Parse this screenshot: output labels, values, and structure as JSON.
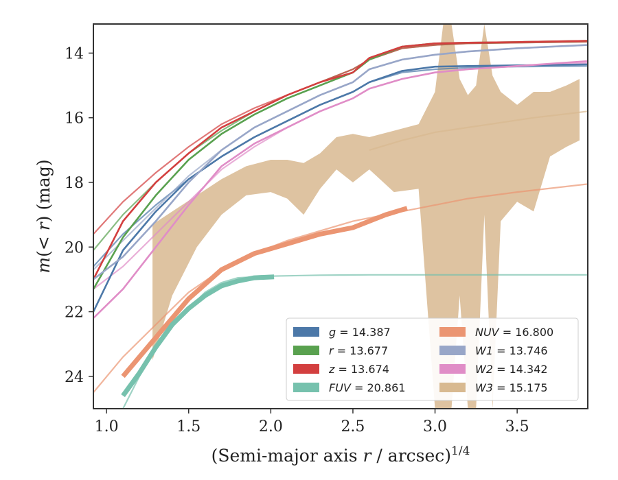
{
  "chart_data": {
    "type": "line",
    "xlabel": "(Semi-major axis r / arcsec)^{1/4}",
    "ylabel": "m(< r) (mag)",
    "xlim": [
      0.92,
      3.93
    ],
    "ylim": [
      25.0,
      13.1
    ],
    "y_inverted": true,
    "xticks": [
      1.0,
      1.5,
      2.0,
      2.5,
      3.0,
      3.5
    ],
    "xtick_labels": [
      "1.0",
      "1.5",
      "2.0",
      "2.5",
      "3.0",
      "3.5"
    ],
    "yticks": [
      14,
      16,
      18,
      20,
      22,
      24
    ],
    "ytick_labels": [
      "14",
      "16",
      "18",
      "20",
      "22",
      "24"
    ],
    "grid": false,
    "legend_position": "bottom-right",
    "legend_columns": 2,
    "legend": [
      {
        "band": "g",
        "value": "14.387",
        "color": "#4c78a8"
      },
      {
        "band": "r",
        "value": "13.677",
        "color": "#59a14f"
      },
      {
        "band": "z",
        "value": "13.674",
        "color": "#d33f3f"
      },
      {
        "band": "FUV",
        "value": "20.861",
        "color": "#76c1ad"
      },
      {
        "band": "NUV",
        "value": "16.800",
        "color": "#eb9572"
      },
      {
        "band": "W1",
        "value": "13.746",
        "color": "#98a6c8"
      },
      {
        "band": "W2",
        "value": "14.342",
        "color": "#e08dc7"
      },
      {
        "band": "W3",
        "value": "15.175",
        "color": "#d8b990"
      }
    ],
    "series": [
      {
        "name": "g",
        "color": "#4c78a8",
        "x": [
          0.92,
          1.1,
          1.3,
          1.5,
          1.7,
          1.9,
          2.1,
          2.3,
          2.5,
          2.6,
          2.8,
          3.0,
          3.2,
          3.5,
          3.93
        ],
        "y": [
          22.0,
          20.1,
          18.9,
          17.9,
          17.2,
          16.6,
          16.1,
          15.6,
          15.2,
          14.9,
          14.55,
          14.42,
          14.4,
          14.38,
          14.35
        ],
        "model_y": [
          20.6,
          19.6,
          18.7,
          17.9,
          17.2,
          16.6,
          16.1,
          15.6,
          15.2,
          14.9,
          14.6,
          14.5,
          14.45,
          14.42,
          14.4
        ]
      },
      {
        "name": "r",
        "color": "#59a14f",
        "x": [
          0.92,
          1.1,
          1.3,
          1.5,
          1.7,
          1.9,
          2.1,
          2.3,
          2.5,
          2.6,
          2.8,
          3.0,
          3.2,
          3.5,
          3.93
        ],
        "y": [
          21.3,
          19.7,
          18.4,
          17.3,
          16.5,
          15.9,
          15.4,
          15.0,
          14.6,
          14.2,
          13.8,
          13.7,
          13.68,
          13.66,
          13.62
        ],
        "model_y": [
          20.1,
          19.0,
          18.0,
          17.1,
          16.4,
          15.8,
          15.3,
          14.9,
          14.5,
          14.2,
          13.85,
          13.75,
          13.7,
          13.68,
          13.65
        ]
      },
      {
        "name": "z",
        "color": "#d33f3f",
        "x": [
          0.92,
          1.1,
          1.3,
          1.5,
          1.7,
          1.9,
          2.1,
          2.3,
          2.5,
          2.6,
          2.8,
          3.0,
          3.2,
          3.5,
          3.93
        ],
        "y": [
          21.0,
          19.2,
          18.0,
          17.1,
          16.3,
          15.8,
          15.3,
          14.9,
          14.6,
          14.15,
          13.8,
          13.7,
          13.68,
          13.66,
          13.62
        ],
        "model_y": [
          19.6,
          18.6,
          17.7,
          16.9,
          16.2,
          15.7,
          15.3,
          14.9,
          14.5,
          14.2,
          13.85,
          13.75,
          13.7,
          13.68,
          13.65
        ]
      },
      {
        "name": "W1",
        "color": "#98a6c8",
        "x": [
          0.92,
          1.1,
          1.3,
          1.5,
          1.7,
          1.9,
          2.1,
          2.3,
          2.5,
          2.6,
          2.8,
          3.0,
          3.2,
          3.5,
          3.93
        ],
        "y": [
          21.0,
          20.3,
          19.2,
          18.0,
          17.0,
          16.3,
          15.8,
          15.3,
          14.9,
          14.5,
          14.2,
          14.05,
          13.95,
          13.85,
          13.75
        ],
        "model_y": [
          20.7,
          19.8,
          18.8,
          17.8,
          17.0,
          16.3,
          15.8,
          15.3,
          14.9,
          14.5,
          14.2,
          14.05,
          13.95,
          13.85,
          13.75
        ]
      },
      {
        "name": "W2",
        "color": "#e08dc7",
        "x": [
          0.92,
          1.1,
          1.3,
          1.5,
          1.7,
          1.9,
          2.1,
          2.3,
          2.5,
          2.6,
          2.8,
          3.0,
          3.2,
          3.5,
          3.93
        ],
        "y": [
          22.2,
          21.3,
          20.0,
          18.7,
          17.5,
          16.8,
          16.3,
          15.8,
          15.4,
          15.1,
          14.8,
          14.6,
          14.5,
          14.4,
          14.25
        ],
        "model_y": [
          21.3,
          20.6,
          19.6,
          18.6,
          17.6,
          16.9,
          16.3,
          15.8,
          15.4,
          15.1,
          14.8,
          14.6,
          14.5,
          14.4,
          14.3
        ]
      },
      {
        "name": "NUV",
        "color": "#eb9572",
        "x": [
          1.1,
          1.3,
          1.5,
          1.7,
          1.9,
          2.1,
          2.3,
          2.5,
          2.7,
          2.83
        ],
        "y": [
          24.0,
          22.8,
          21.6,
          20.7,
          20.2,
          19.9,
          19.6,
          19.4,
          19.0,
          18.8
        ],
        "model_x": [
          0.92,
          1.1,
          1.3,
          1.5,
          1.7,
          1.9,
          2.1,
          2.3,
          2.5,
          2.7,
          2.9,
          3.2,
          3.5,
          3.93
        ],
        "model_y": [
          24.5,
          23.4,
          22.4,
          21.4,
          20.7,
          20.2,
          19.8,
          19.5,
          19.2,
          19.0,
          18.8,
          18.5,
          18.3,
          18.05
        ]
      },
      {
        "name": "FUV",
        "color": "#76c1ad",
        "x": [
          1.1,
          1.2,
          1.3,
          1.4,
          1.5,
          1.6,
          1.7,
          1.8,
          1.9,
          2.02
        ],
        "y": [
          24.6,
          23.9,
          23.1,
          22.4,
          21.9,
          21.5,
          21.2,
          21.05,
          20.95,
          20.92
        ],
        "model_x": [
          1.1,
          1.2,
          1.3,
          1.4,
          1.5,
          1.6,
          1.7,
          1.8,
          2.0,
          2.3,
          2.6,
          3.0,
          3.5,
          3.93
        ],
        "model_y": [
          25.0,
          24.0,
          23.1,
          22.4,
          21.9,
          21.4,
          21.1,
          20.95,
          20.9,
          20.87,
          20.86,
          20.86,
          20.86,
          20.86
        ]
      },
      {
        "name": "W3",
        "color": "#d8b990",
        "band_x": [
          1.28,
          1.4,
          1.55,
          1.7,
          1.85,
          2.0,
          2.1,
          2.2,
          2.3,
          2.4,
          2.5,
          2.6,
          2.75,
          2.9,
          3.0,
          3.05,
          3.1,
          3.15,
          3.2,
          3.25,
          3.3,
          3.35,
          3.4,
          3.5,
          3.6,
          3.7,
          3.8,
          3.88
        ],
        "band_upper": [
          19.3,
          18.9,
          18.4,
          17.9,
          17.5,
          17.3,
          17.3,
          17.4,
          17.1,
          16.6,
          16.5,
          16.6,
          16.4,
          16.2,
          15.2,
          12.0,
          12.0,
          14.8,
          15.3,
          15.0,
          12.0,
          14.7,
          15.2,
          15.6,
          15.2,
          15.2,
          15.0,
          14.8
        ],
        "band_lower": [
          23.5,
          21.5,
          20.0,
          19.0,
          18.4,
          18.3,
          18.5,
          19.0,
          18.2,
          17.6,
          18.0,
          17.6,
          18.3,
          18.2,
          25.0,
          25.0,
          25.0,
          21.5,
          25.0,
          25.0,
          19.0,
          25.0,
          19.2,
          18.6,
          18.9,
          17.2,
          16.9,
          16.7
        ],
        "model_x": [
          2.6,
          2.8,
          3.0,
          3.2,
          3.4,
          3.6,
          3.8,
          3.93
        ],
        "model_y": [
          17.0,
          16.7,
          16.45,
          16.3,
          16.15,
          16.0,
          15.88,
          15.8
        ]
      }
    ]
  }
}
